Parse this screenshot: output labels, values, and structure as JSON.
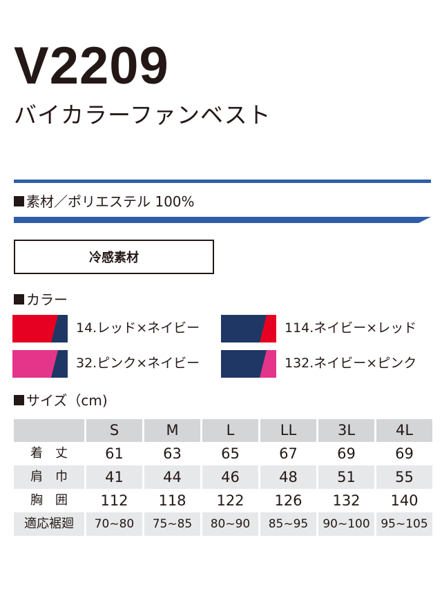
{
  "header": {
    "model": "V2209",
    "subtitle": "バイカラーファンベスト"
  },
  "material": "素材／ポリエステル 100%",
  "badge": "冷感素材",
  "colors_heading": "カラー",
  "colors": [
    {
      "label": "14.レッド×ネイビー",
      "main": "#e60021",
      "accent": "#1f3765"
    },
    {
      "label": "114.ネイビー×レッド",
      "main": "#1f3765",
      "accent": "#e60021"
    },
    {
      "label": "32.ピンク×ネイビー",
      "main": "#e4358b",
      "accent": "#1f3765"
    },
    {
      "label": "132.ネイビー×ピンク",
      "main": "#1f3765",
      "accent": "#e4358b"
    }
  ],
  "size_heading": "サイズ（cm)",
  "size_table": {
    "columns": [
      "S",
      "M",
      "L",
      "LL",
      "3L",
      "4L"
    ],
    "rows": [
      {
        "label": "着　丈",
        "values": [
          "61",
          "63",
          "65",
          "67",
          "69",
          "69"
        ]
      },
      {
        "label": "肩　巾",
        "values": [
          "41",
          "44",
          "46",
          "48",
          "51",
          "55"
        ]
      },
      {
        "label": "胸　囲",
        "values": [
          "112",
          "118",
          "122",
          "126",
          "132",
          "140"
        ]
      },
      {
        "label": "適応裾廻",
        "values": [
          "70~80",
          "75~85",
          "80~90",
          "85~95",
          "90~100",
          "95~105"
        ]
      }
    ]
  },
  "accent_color": "#2f5da9"
}
